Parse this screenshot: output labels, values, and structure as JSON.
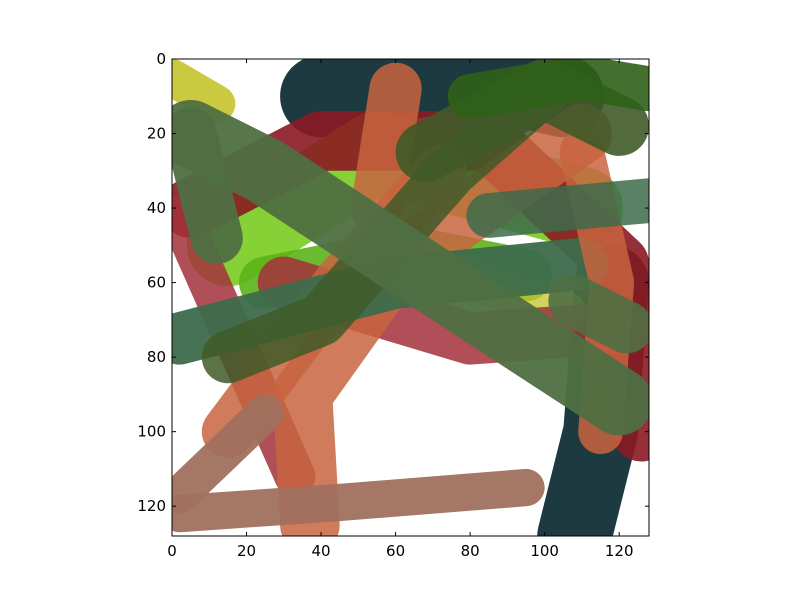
{
  "image_plot": {
    "x_axis": {
      "range": [
        0,
        128
      ],
      "ticks": [
        0,
        20,
        40,
        60,
        80,
        100,
        120
      ]
    },
    "y_axis": {
      "range": [
        0,
        128
      ],
      "inverted": true,
      "ticks": [
        0,
        20,
        40,
        60,
        80,
        100,
        120
      ]
    },
    "x_tick_labels": [
      "0",
      "20",
      "40",
      "60",
      "80",
      "100",
      "120"
    ],
    "y_tick_labels": [
      "0",
      "20",
      "40",
      "60",
      "80",
      "100",
      "120"
    ],
    "strokes": [
      {
        "color": "#1e3a41",
        "opacity": 1.0,
        "width": 22,
        "points": [
          [
            40,
            10
          ],
          [
            75,
            3
          ],
          [
            105,
            10
          ]
        ]
      },
      {
        "color": "#1e3a41",
        "opacity": 1.0,
        "width": 20,
        "points": [
          [
            118,
            60
          ],
          [
            115,
            100
          ],
          [
            108,
            128
          ]
        ]
      },
      {
        "color": "#c5c32a",
        "opacity": 0.9,
        "width": 10,
        "points": [
          [
            0,
            5
          ],
          [
            12,
            12
          ]
        ]
      },
      {
        "color": "#7fcf2a",
        "opacity": 0.95,
        "width": 22,
        "points": [
          [
            15,
            50
          ],
          [
            55,
            25
          ],
          [
            110,
            40
          ]
        ]
      },
      {
        "color": "#5cb318",
        "opacity": 0.9,
        "width": 14,
        "points": [
          [
            25,
            60
          ],
          [
            65,
            52
          ],
          [
            95,
            58
          ]
        ]
      },
      {
        "color": "#c5c32a",
        "opacity": 0.75,
        "width": 12,
        "points": [
          [
            70,
            55
          ],
          [
            105,
            68
          ]
        ]
      },
      {
        "color": "#8b1a22",
        "opacity": 0.9,
        "width": 16,
        "points": [
          [
            5,
            40
          ],
          [
            40,
            22
          ],
          [
            85,
            22
          ],
          [
            120,
            55
          ],
          [
            126,
            100
          ]
        ]
      },
      {
        "color": "#a3303c",
        "opacity": 0.85,
        "width": 14,
        "points": [
          [
            30,
            60
          ],
          [
            80,
            75
          ],
          [
            122,
            72
          ]
        ]
      },
      {
        "color": "#a3303c",
        "opacity": 0.85,
        "width": 11,
        "points": [
          [
            2,
            42
          ],
          [
            33,
            112
          ]
        ]
      },
      {
        "color": "#c8643f",
        "opacity": 0.85,
        "width": 14,
        "points": [
          [
            60,
            8
          ],
          [
            55,
            40
          ]
        ]
      },
      {
        "color": "#c8643f",
        "opacity": 0.85,
        "width": 14,
        "points": [
          [
            15,
            100
          ],
          [
            45,
            60
          ],
          [
            72,
            30
          ]
        ]
      },
      {
        "color": "#c8643f",
        "opacity": 0.85,
        "width": 16,
        "points": [
          [
            37,
            125
          ],
          [
            35,
            90
          ],
          [
            60,
            55
          ],
          [
            110,
            20
          ]
        ]
      },
      {
        "color": "#a0705f",
        "opacity": 0.95,
        "width": 10,
        "points": [
          [
            2,
            117
          ],
          [
            25,
            95
          ]
        ]
      },
      {
        "color": "#a0705f",
        "opacity": 0.95,
        "width": 10,
        "points": [
          [
            2,
            122
          ],
          [
            45,
            119
          ],
          [
            95,
            115
          ]
        ]
      },
      {
        "color": "#3d6b4b",
        "opacity": 0.95,
        "width": 14,
        "points": [
          [
            2,
            75
          ],
          [
            60,
            60
          ],
          [
            110,
            55
          ]
        ]
      },
      {
        "color": "#c8643f",
        "opacity": 0.85,
        "width": 12,
        "points": [
          [
            115,
            100
          ],
          [
            118,
            60
          ],
          [
            110,
            25
          ]
        ]
      },
      {
        "color": "#3f5a28",
        "opacity": 0.9,
        "width": 16,
        "points": [
          [
            68,
            25
          ],
          [
            100,
            8
          ],
          [
            120,
            18
          ]
        ]
      },
      {
        "color": "#3f5a28",
        "opacity": 0.85,
        "width": 14,
        "points": [
          [
            100,
            8
          ],
          [
            75,
            30
          ],
          [
            40,
            70
          ],
          [
            15,
            80
          ]
        ]
      },
      {
        "color": "#2f6017",
        "opacity": 0.9,
        "width": 12,
        "points": [
          [
            80,
            10
          ],
          [
            110,
            5
          ],
          [
            128,
            8
          ]
        ]
      },
      {
        "color": "#4f6f42",
        "opacity": 0.95,
        "width": 18,
        "points": [
          [
            5,
            20
          ],
          [
            25,
            30
          ],
          [
            120,
            92
          ]
        ]
      },
      {
        "color": "#4f6f42",
        "opacity": 0.95,
        "width": 14,
        "points": [
          [
            5,
            20
          ],
          [
            12,
            48
          ]
        ]
      },
      {
        "color": "#4f6f42",
        "opacity": 0.9,
        "width": 14,
        "points": [
          [
            108,
            65
          ],
          [
            122,
            72
          ]
        ]
      },
      {
        "color": "#3d6b4b",
        "opacity": 0.85,
        "width": 12,
        "points": [
          [
            85,
            42
          ],
          [
            128,
            38
          ]
        ]
      }
    ]
  }
}
